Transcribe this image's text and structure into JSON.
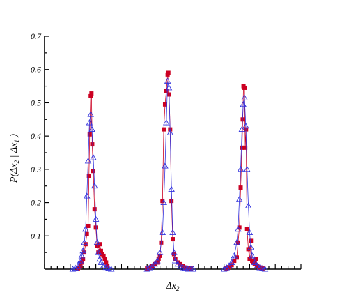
{
  "chart_data": {
    "type": "scatter",
    "xlabel": {
      "main": "Δx",
      "sub": "2"
    },
    "ylabel": {
      "p": "P(",
      "dx": "Δx",
      "sub2": "2",
      "bar": " | ",
      "dx1": "Δx",
      "sub1": "1",
      "close": " )"
    },
    "ylim": [
      0,
      0.7
    ],
    "xlim": [
      0,
      100
    ],
    "yticks": [
      0.1,
      0.2,
      0.3,
      0.4,
      0.5,
      0.6,
      0.7
    ],
    "ytick_labels": [
      "0.1",
      "0.2",
      "0.3",
      "0.4",
      "0.5",
      "0.6",
      "0.7"
    ],
    "grid": false,
    "colors": {
      "series_a": "#cc0022",
      "series_b": "#3333dd"
    },
    "series": [
      {
        "marker": "square",
        "color": "#cc0022",
        "groups": [
          {
            "x": [
              13.0,
              13.5,
              14.0,
              14.5,
              15.0,
              15.5,
              16.0,
              16.5,
              17.0,
              17.3,
              17.6,
              18.0,
              18.3,
              18.6,
              19.0,
              19.5,
              20.0,
              20.5,
              21.0,
              21.5,
              22.0,
              22.5,
              23.0,
              23.5,
              24.0,
              24.5
            ],
            "y": [
              0.0,
              0.005,
              0.01,
              0.02,
              0.03,
              0.05,
              0.075,
              0.105,
              0.13,
              0.28,
              0.405,
              0.52,
              0.528,
              0.375,
              0.295,
              0.18,
              0.125,
              0.07,
              0.05,
              0.075,
              0.055,
              0.045,
              0.04,
              0.03,
              0.02,
              0.01
            ]
          },
          {
            "x": [
              40.0,
              41.0,
              42.0,
              43.0,
              44.0,
              44.5,
              45.0,
              45.5,
              46.0,
              46.5,
              47.0,
              47.5,
              48.0,
              48.3,
              48.6,
              49.0,
              49.5,
              50.0,
              50.5,
              51.0,
              52.0,
              53.0,
              54.0,
              55.0,
              56.0,
              57.0
            ],
            "y": [
              0.002,
              0.005,
              0.01,
              0.015,
              0.02,
              0.03,
              0.04,
              0.08,
              0.205,
              0.42,
              0.495,
              0.535,
              0.585,
              0.59,
              0.525,
              0.42,
              0.205,
              0.09,
              0.045,
              0.03,
              0.02,
              0.015,
              0.01,
              0.005,
              0.003,
              0.002
            ]
          },
          {
            "x": [
              71.0,
              72.0,
              73.0,
              74.0,
              75.0,
              75.5,
              76.0,
              76.5,
              77.0,
              77.3,
              77.6,
              78.0,
              78.3,
              78.6,
              79.0,
              79.5,
              80.0,
              80.5,
              81.0,
              81.5,
              82.0,
              82.5,
              83.0,
              84.0,
              85.0
            ],
            "y": [
              0.002,
              0.006,
              0.012,
              0.025,
              0.035,
              0.08,
              0.125,
              0.245,
              0.365,
              0.45,
              0.55,
              0.545,
              0.365,
              0.42,
              0.12,
              0.06,
              0.03,
              0.085,
              0.025,
              0.02,
              0.015,
              0.03,
              0.01,
              0.005,
              0.002
            ]
          }
        ]
      },
      {
        "marker": "triangle",
        "color": "#3333dd",
        "groups": [
          {
            "x": [
              11.0,
              12.0,
              13.0,
              13.5,
              14.0,
              14.5,
              15.0,
              15.5,
              16.0,
              16.5,
              17.0,
              17.5,
              18.0,
              18.5,
              19.0,
              19.5,
              20.0,
              20.5,
              21.0,
              21.5,
              22.0,
              23.0,
              24.0,
              25.0,
              26.0
            ],
            "y": [
              0.0,
              0.003,
              0.008,
              0.015,
              0.025,
              0.04,
              0.055,
              0.08,
              0.12,
              0.22,
              0.325,
              0.44,
              0.465,
              0.42,
              0.335,
              0.25,
              0.15,
              0.08,
              0.05,
              0.03,
              0.02,
              0.01,
              0.005,
              0.003,
              0.0
            ]
          },
          {
            "x": [
              40.0,
              41.0,
              42.0,
              43.0,
              44.0,
              45.0,
              46.0,
              46.5,
              47.0,
              47.5,
              48.0,
              48.5,
              49.0,
              49.5,
              50.0,
              50.5,
              51.0,
              52.0,
              53.0,
              54.0,
              55.0,
              56.0,
              57.0,
              58.0
            ],
            "y": [
              0.0,
              0.004,
              0.008,
              0.015,
              0.025,
              0.05,
              0.11,
              0.2,
              0.31,
              0.44,
              0.565,
              0.545,
              0.41,
              0.24,
              0.11,
              0.05,
              0.025,
              0.015,
              0.008,
              0.004,
              0.002,
              0.0,
              0.0,
              0.0
            ]
          },
          {
            "x": [
              70.0,
              71.0,
              72.0,
              73.0,
              74.0,
              75.0,
              75.5,
              76.0,
              76.5,
              77.0,
              77.5,
              78.0,
              78.5,
              79.0,
              79.5,
              80.0,
              80.5,
              81.0,
              82.0,
              83.0,
              84.0,
              85.0,
              86.0
            ],
            "y": [
              0.0,
              0.004,
              0.01,
              0.02,
              0.04,
              0.08,
              0.12,
              0.21,
              0.3,
              0.42,
              0.495,
              0.515,
              0.43,
              0.3,
              0.19,
              0.11,
              0.065,
              0.04,
              0.02,
              0.01,
              0.004,
              0.002,
              0.0
            ]
          }
        ]
      }
    ]
  }
}
